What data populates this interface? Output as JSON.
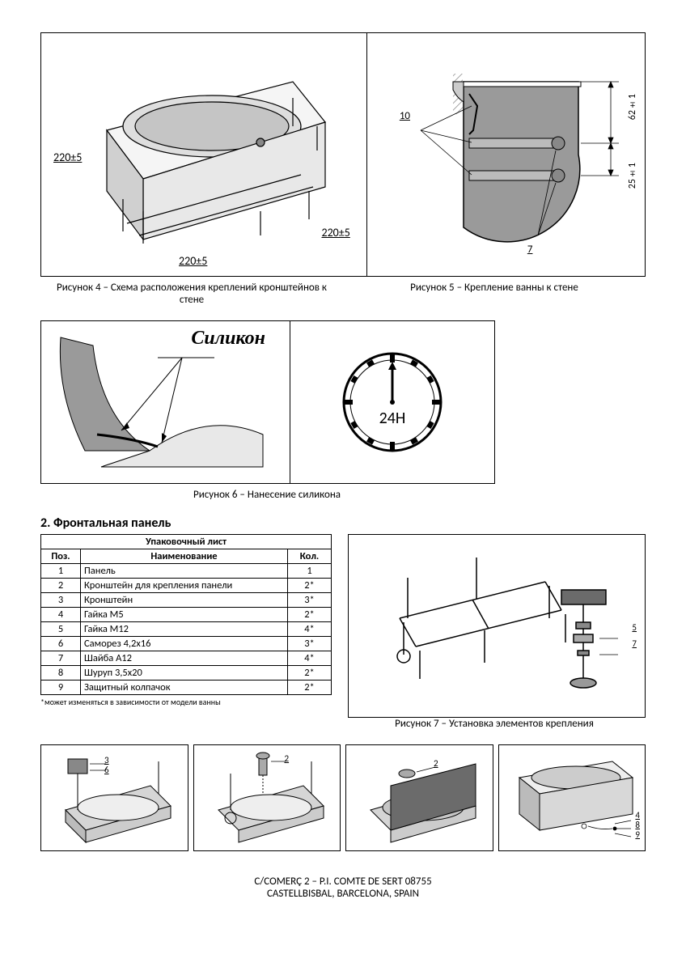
{
  "figures": {
    "fig4": {
      "caption": "Рисунок 4 – Схема расположения креплений кронштейнов к стене",
      "dim_a": "220±5",
      "dim_b": "220±5",
      "dim_c": "220±5"
    },
    "fig5": {
      "caption": "Рисунок 5 – Крепление ванны к стене",
      "callout_10": "10",
      "callout_7": "7",
      "dim_62": "62±1",
      "dim_25": "25±1"
    },
    "fig6": {
      "caption": "Рисунок 6 – Нанесение силикона",
      "silicone": "Силикон",
      "clock": "24H"
    },
    "fig7": {
      "caption": "Рисунок 7 – Установка элементов крепления",
      "callout_5": "5",
      "callout_7": "7"
    },
    "small": {
      "a": {
        "c3": "3",
        "c6": "6"
      },
      "b": {
        "c2": "2"
      },
      "c": {
        "c2": "2"
      },
      "d": {
        "c4": "4",
        "c8": "8",
        "c9": "9"
      }
    }
  },
  "section2": {
    "title": "2. Фронтальная панель",
    "table_title": "Упаковочный лист",
    "headers": {
      "pos": "Поз.",
      "name": "Наименование",
      "qty": "Кол."
    },
    "rows": [
      {
        "pos": "1",
        "name": "Панель",
        "qty": "1"
      },
      {
        "pos": "2",
        "name": "Кронштейн для крепления панели",
        "qty": "2*"
      },
      {
        "pos": "3",
        "name": "Кронштейн",
        "qty": "3*"
      },
      {
        "pos": "4",
        "name": "Гайка М5",
        "qty": "2*"
      },
      {
        "pos": "5",
        "name": "Гайка М12",
        "qty": "4*"
      },
      {
        "pos": "6",
        "name": "Саморез 4,2х16",
        "qty": "3*"
      },
      {
        "pos": "7",
        "name": "Шайба А12",
        "qty": "4*"
      },
      {
        "pos": "8",
        "name": "Шуруп 3,5х20",
        "qty": "2*"
      },
      {
        "pos": "9",
        "name": "Защитный колпачок",
        "qty": "2*"
      }
    ],
    "footnote": "*может изменяться в зависимости от модели ванны"
  },
  "footer": {
    "line1": "C/COMERÇ 2 – P.I. COMTE DE SERT 08755",
    "line2": "CASTELLBISBAL, BARCELONA, SPAIN"
  },
  "colors": {
    "bg": "#ffffff",
    "border": "#000000",
    "gray_fill": "#9a9a9a",
    "gray_light": "#cccccc",
    "gray_dark": "#6b6b6b",
    "hatch": "#888888"
  }
}
